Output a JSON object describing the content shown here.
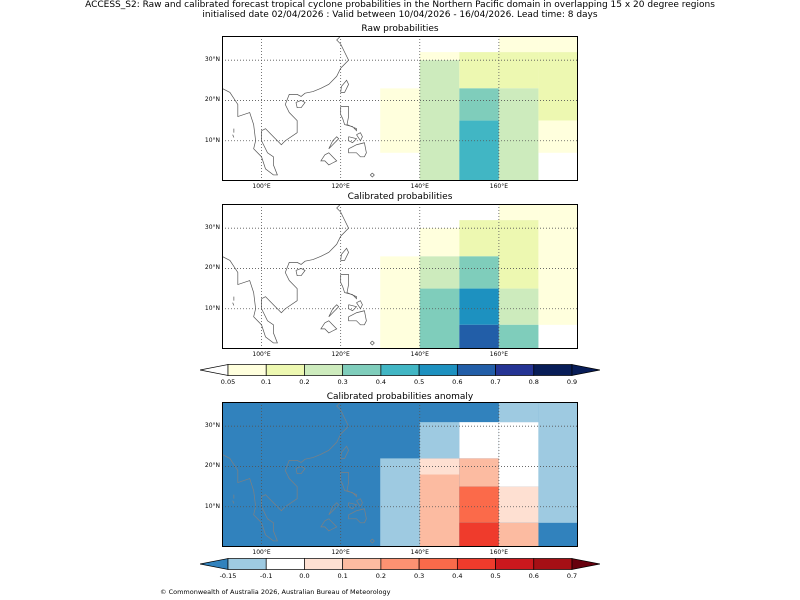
{
  "header": {
    "line1": "ACCESS_S2: Raw and calibrated forecast tropical cyclone probabilities in the Northern Pacific domain in overlapping 15 x 20 degree regions",
    "line2": "initialised date 02/04/2026 :  Valid between 10/04/2026 - 16/04/2026. Lead time: 8 days"
  },
  "panels": [
    {
      "title": "Raw probabilities",
      "cells": [
        {
          "lon": [
            130,
            140
          ],
          "lat": [
            7,
            23
          ],
          "c": "#ffffdd"
        },
        {
          "lon": [
            140,
            150
          ],
          "lat": [
            30,
            32
          ],
          "c": "#ffffdd"
        },
        {
          "lon": [
            140,
            150
          ],
          "lat": [
            0,
            30
          ],
          "c": "#cdebbd"
        },
        {
          "lon": [
            150,
            160
          ],
          "lat": [
            23,
            32
          ],
          "c": "#edf8b1"
        },
        {
          "lon": [
            150,
            160
          ],
          "lat": [
            15,
            23
          ],
          "c": "#7fcdbb"
        },
        {
          "lon": [
            150,
            160
          ],
          "lat": [
            0,
            15
          ],
          "c": "#41b6c4"
        },
        {
          "lon": [
            160,
            170
          ],
          "lat": [
            32,
            37
          ],
          "c": "#ffffdd"
        },
        {
          "lon": [
            160,
            170
          ],
          "lat": [
            23,
            32
          ],
          "c": "#edf8b1"
        },
        {
          "lon": [
            160,
            170
          ],
          "lat": [
            0,
            23
          ],
          "c": "#cdebbd"
        },
        {
          "lon": [
            170,
            180
          ],
          "lat": [
            32,
            37
          ],
          "c": "#ffffdd"
        },
        {
          "lon": [
            170,
            180
          ],
          "lat": [
            15,
            32
          ],
          "c": "#edf8b1"
        },
        {
          "lon": [
            170,
            180
          ],
          "lat": [
            7,
            15
          ],
          "c": "#ffffdd"
        }
      ]
    },
    {
      "title": "Calibrated probabilities",
      "cells": [
        {
          "lon": [
            130,
            140
          ],
          "lat": [
            0,
            23
          ],
          "c": "#ffffdd"
        },
        {
          "lon": [
            140,
            150
          ],
          "lat": [
            23,
            30
          ],
          "c": "#ffffdd"
        },
        {
          "lon": [
            140,
            150
          ],
          "lat": [
            15,
            23
          ],
          "c": "#cdebbd"
        },
        {
          "lon": [
            140,
            150
          ],
          "lat": [
            0,
            15
          ],
          "c": "#7fcdbb"
        },
        {
          "lon": [
            150,
            160
          ],
          "lat": [
            23,
            32
          ],
          "c": "#edf8b1"
        },
        {
          "lon": [
            150,
            160
          ],
          "lat": [
            15,
            23
          ],
          "c": "#7fcdbb"
        },
        {
          "lon": [
            150,
            160
          ],
          "lat": [
            6,
            15
          ],
          "c": "#1d91c0"
        },
        {
          "lon": [
            150,
            160
          ],
          "lat": [
            0,
            6
          ],
          "c": "#225ea8"
        },
        {
          "lon": [
            160,
            170
          ],
          "lat": [
            32,
            37
          ],
          "c": "#ffffdd"
        },
        {
          "lon": [
            160,
            170
          ],
          "lat": [
            15,
            32
          ],
          "c": "#edf8b1"
        },
        {
          "lon": [
            160,
            170
          ],
          "lat": [
            6,
            15
          ],
          "c": "#cdebbd"
        },
        {
          "lon": [
            160,
            170
          ],
          "lat": [
            0,
            6
          ],
          "c": "#7fcdbb"
        },
        {
          "lon": [
            170,
            180
          ],
          "lat": [
            6,
            37
          ],
          "c": "#ffffdd"
        }
      ]
    },
    {
      "title": "Calibrated probabilities anomaly",
      "cells": [
        {
          "lon": [
            90,
            180
          ],
          "lat": [
            0,
            37
          ],
          "c": "#3182bd"
        },
        {
          "lon": [
            130,
            140
          ],
          "lat": [
            0,
            22
          ],
          "c": "#9ecae1"
        },
        {
          "lon": [
            140,
            150
          ],
          "lat": [
            22,
            31
          ],
          "c": "#9ecae1"
        },
        {
          "lon": [
            140,
            150
          ],
          "lat": [
            18,
            22
          ],
          "c": "#fee0d2"
        },
        {
          "lon": [
            140,
            150
          ],
          "lat": [
            0,
            18
          ],
          "c": "#fcbba1"
        },
        {
          "lon": [
            150,
            160
          ],
          "lat": [
            22,
            31
          ],
          "c": "#ffffff"
        },
        {
          "lon": [
            150,
            160
          ],
          "lat": [
            15,
            22
          ],
          "c": "#fcbba1"
        },
        {
          "lon": [
            150,
            160
          ],
          "lat": [
            6,
            15
          ],
          "c": "#fb6a4a"
        },
        {
          "lon": [
            150,
            160
          ],
          "lat": [
            0,
            6
          ],
          "c": "#ef3b2c"
        },
        {
          "lon": [
            160,
            170
          ],
          "lat": [
            31,
            37
          ],
          "c": "#9ecae1"
        },
        {
          "lon": [
            160,
            170
          ],
          "lat": [
            15,
            31
          ],
          "c": "#ffffff"
        },
        {
          "lon": [
            160,
            170
          ],
          "lat": [
            6,
            15
          ],
          "c": "#fee0d2"
        },
        {
          "lon": [
            160,
            170
          ],
          "lat": [
            0,
            6
          ],
          "c": "#fcbba1"
        },
        {
          "lon": [
            170,
            180
          ],
          "lat": [
            6,
            37
          ],
          "c": "#9ecae1"
        }
      ]
    }
  ],
  "axes": {
    "lat_ticks": [
      "30°N",
      "20°N",
      "10°N"
    ],
    "lon_ticks": [
      "100°E",
      "120°E",
      "140°E",
      "160°E"
    ],
    "lon_range": [
      90,
      180
    ],
    "lat_range": [
      0,
      36
    ]
  },
  "colorbar_prob": {
    "labels": [
      "0.05",
      "0.1",
      "0.2",
      "0.3",
      "0.4",
      "0.5",
      "0.6",
      "0.7",
      "0.8",
      "0.9"
    ],
    "colors": [
      "#ffffdd",
      "#edf8b1",
      "#cdebbd",
      "#7fcdbb",
      "#41b6c4",
      "#1d91c0",
      "#225ea8",
      "#253494",
      "#081d58"
    ],
    "under": "#ffffff",
    "over": "#081d58"
  },
  "colorbar_anom": {
    "labels": [
      "-0.15",
      "-0.1",
      "0.0",
      "0.1",
      "0.2",
      "0.3",
      "0.4",
      "0.5",
      "0.6",
      "0.7"
    ],
    "colors": [
      "#9ecae1",
      "#ffffff",
      "#fee0d2",
      "#fcbba1",
      "#fc9272",
      "#fb6a4a",
      "#ef3b2c",
      "#cb181d",
      "#a50f15"
    ],
    "under": "#3182bd",
    "over": "#67000d"
  },
  "footer": {
    "copyright": "© Commonwealth of Australia 2026, Australian Bureau of Meteorology"
  }
}
